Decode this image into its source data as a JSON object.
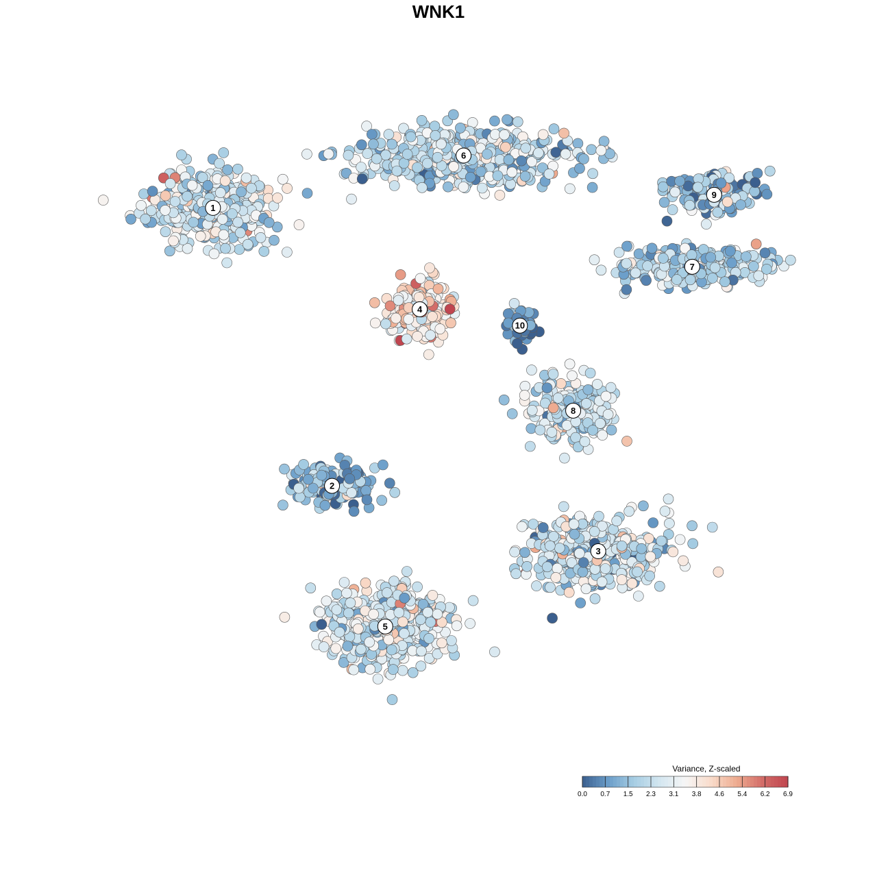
{
  "chart_data": {
    "type": "scatter",
    "title": "WNK1",
    "grid": false,
    "legend": {
      "title": "Variance, Z-scaled",
      "placement": "bottom-right",
      "ticks": [
        "0.0",
        "0.7",
        "1.5",
        "2.3",
        "3.1",
        "3.8",
        "4.6",
        "5.4",
        "6.2",
        "6.9"
      ],
      "range": [
        0.0,
        6.9
      ],
      "colors": [
        "#3b5f8e",
        "#6a9dc9",
        "#a6cde3",
        "#d3e6f0",
        "#f6f6f6",
        "#f9dccb",
        "#eeac90",
        "#d36c68",
        "#c0454f"
      ]
    },
    "clusters": [
      {
        "label": "1",
        "x": -7.2,
        "y": 5.9,
        "spread": [
          1.7,
          1.05
        ],
        "mean": 2.6,
        "n": 500
      },
      {
        "label": "2",
        "x": -3.4,
        "y": -2.6,
        "spread": [
          1.25,
          0.55
        ],
        "mean": 1.3,
        "n": 180
      },
      {
        "label": "3",
        "x": 5.1,
        "y": -4.6,
        "spread": [
          2.1,
          0.95
        ],
        "mean": 2.4,
        "n": 450
      },
      {
        "label": "4",
        "x": -0.6,
        "y": 2.8,
        "spread": [
          0.85,
          0.75
        ],
        "mean": 3.9,
        "n": 220
      },
      {
        "label": "5",
        "x": -1.7,
        "y": -6.9,
        "spread": [
          1.7,
          1.05
        ],
        "mean": 2.6,
        "n": 480
      },
      {
        "label": "6",
        "x": 0.8,
        "y": 7.5,
        "spread": [
          3.2,
          0.85
        ],
        "mean": 2.2,
        "n": 520
      },
      {
        "label": "7",
        "x": 8.1,
        "y": 4.1,
        "spread": [
          2.0,
          0.55
        ],
        "mean": 2.0,
        "n": 260
      },
      {
        "label": "8",
        "x": 4.3,
        "y": -0.3,
        "spread": [
          1.4,
          0.9
        ],
        "mean": 2.5,
        "n": 220
      },
      {
        "label": "9",
        "x": 8.8,
        "y": 6.3,
        "spread": [
          1.4,
          0.55
        ],
        "mean": 1.6,
        "n": 170
      },
      {
        "label": "10",
        "x": 2.6,
        "y": 2.3,
        "spread": [
          0.4,
          0.5
        ],
        "mean": 0.5,
        "n": 60
      }
    ],
    "xlim": [
      -14,
      14
    ],
    "ylim": [
      -11,
      11
    ]
  }
}
